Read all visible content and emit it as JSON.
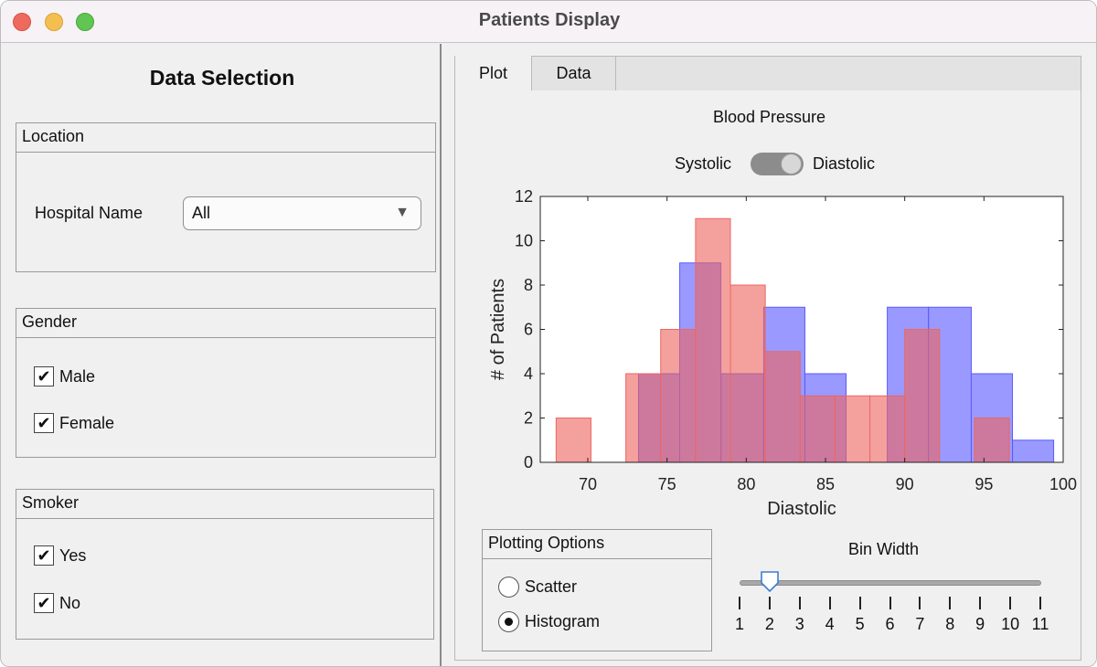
{
  "window": {
    "title": "Patients Display"
  },
  "left": {
    "title": "Data Selection",
    "location": {
      "header": "Location",
      "hospital_label": "Hospital Name",
      "hospital_value": "All"
    },
    "gender": {
      "header": "Gender",
      "options": [
        {
          "label": "Male",
          "checked": true
        },
        {
          "label": "Female",
          "checked": true
        }
      ]
    },
    "smoker": {
      "header": "Smoker",
      "options": [
        {
          "label": "Yes",
          "checked": true
        },
        {
          "label": "No",
          "checked": true
        }
      ]
    }
  },
  "tabs": [
    {
      "label": "Plot",
      "active": true
    },
    {
      "label": "Data",
      "active": false
    }
  ],
  "plot": {
    "title": "Blood Pressure",
    "toggle": {
      "left_label": "Systolic",
      "right_label": "Diastolic",
      "state": "Diastolic"
    }
  },
  "options": {
    "header": "Plotting Options",
    "radios": [
      {
        "label": "Scatter",
        "selected": false
      },
      {
        "label": "Histogram",
        "selected": true
      }
    ],
    "bin_width": {
      "label": "Bin Width",
      "value": 2,
      "ticks": [
        "1",
        "2",
        "3",
        "4",
        "5",
        "6",
        "7",
        "8",
        "9",
        "10",
        "11"
      ]
    }
  },
  "colors": {
    "blue_series": "#5b5bff",
    "red_series": "#ee6661",
    "overlap": "#b0325e"
  },
  "chart_data": {
    "type": "bar",
    "xlabel": "Diastolic",
    "ylabel": "# of Patients",
    "xlim": [
      67,
      100
    ],
    "ylim": [
      0,
      12
    ],
    "xticks": [
      70,
      75,
      80,
      85,
      90,
      95,
      100
    ],
    "yticks": [
      0,
      2,
      4,
      6,
      8,
      10,
      12
    ],
    "grid": false,
    "series": [
      {
        "color": "#5b5bff",
        "bins": [
          {
            "x0": 73.2,
            "x1": 75.8,
            "y": 4
          },
          {
            "x0": 75.8,
            "x1": 78.4,
            "y": 9
          },
          {
            "x0": 78.4,
            "x1": 81.1,
            "y": 4
          },
          {
            "x0": 81.1,
            "x1": 83.7,
            "y": 7
          },
          {
            "x0": 83.7,
            "x1": 86.3,
            "y": 4
          },
          {
            "x0": 88.9,
            "x1": 91.5,
            "y": 7
          },
          {
            "x0": 91.5,
            "x1": 94.2,
            "y": 7
          },
          {
            "x0": 94.2,
            "x1": 96.8,
            "y": 4
          },
          {
            "x0": 96.8,
            "x1": 99.4,
            "y": 1
          }
        ]
      },
      {
        "color": "#ee6661",
        "bins": [
          {
            "x0": 68.0,
            "x1": 70.2,
            "y": 2
          },
          {
            "x0": 72.4,
            "x1": 74.6,
            "y": 4
          },
          {
            "x0": 74.6,
            "x1": 76.8,
            "y": 6
          },
          {
            "x0": 76.8,
            "x1": 79.0,
            "y": 11
          },
          {
            "x0": 79.0,
            "x1": 81.2,
            "y": 8
          },
          {
            "x0": 81.2,
            "x1": 83.4,
            "y": 5
          },
          {
            "x0": 83.4,
            "x1": 85.6,
            "y": 3
          },
          {
            "x0": 85.6,
            "x1": 87.8,
            "y": 3
          },
          {
            "x0": 87.8,
            "x1": 90.0,
            "y": 3
          },
          {
            "x0": 90.0,
            "x1": 92.2,
            "y": 6
          },
          {
            "x0": 94.4,
            "x1": 96.6,
            "y": 2
          }
        ]
      }
    ]
  }
}
